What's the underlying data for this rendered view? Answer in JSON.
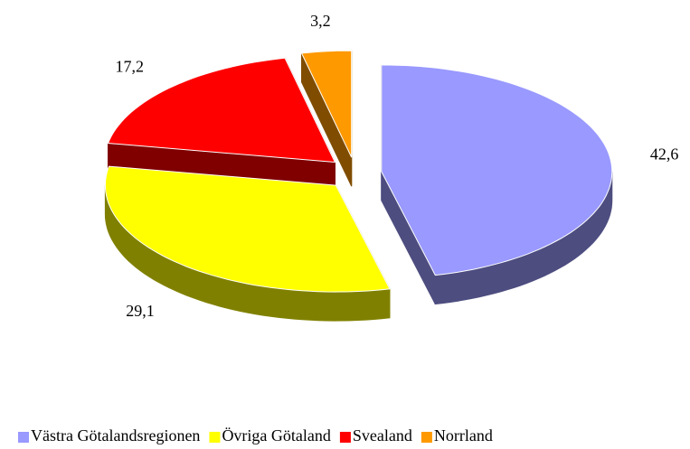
{
  "chart_data": {
    "type": "pie3d",
    "categories": [
      "Västra Götalandsregionen",
      "Övriga Götaland",
      "Svealand",
      "Norrland"
    ],
    "values": [
      42.6,
      29.1,
      17.2,
      3.2
    ],
    "value_labels": [
      "42,6",
      "29,1",
      "17,2",
      "3,2"
    ],
    "colors": [
      "#9999ff",
      "#ffff00",
      "#ff0000",
      "#ff9900"
    ],
    "legend": "bottom"
  }
}
